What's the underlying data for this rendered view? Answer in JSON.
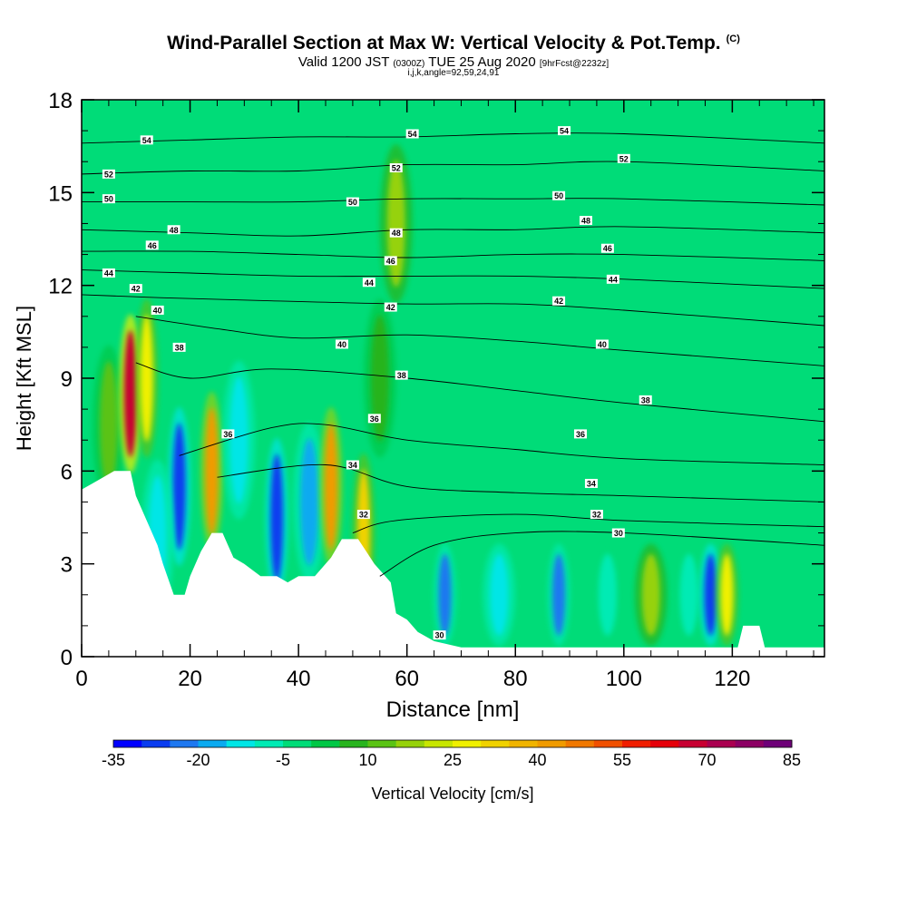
{
  "header": {
    "title": "Wind-Parallel Section at Max W: Vertical Velocity & Pot.Temp.",
    "title_mark": "(C)",
    "valid_prefix": "Valid 1200 JST",
    "valid_zulu": "(0300Z)",
    "valid_date": "TUE 25 Aug 2020",
    "fcst": "[9hrFcst@2232z]",
    "ijk": "i,j,k,angle=92,59,24,91"
  },
  "colors": {
    "ramp": [
      "#0000ff",
      "#0a3cf0",
      "#1e78f0",
      "#0aaaf0",
      "#00e6e6",
      "#00ebb4",
      "#00dc78",
      "#00c846",
      "#28b41e",
      "#5ac314",
      "#96d20a",
      "#c8e600",
      "#f0f000",
      "#f0d200",
      "#f0b400",
      "#f09b00",
      "#f07800",
      "#f05000",
      "#f01e00",
      "#e6000a",
      "#c80032",
      "#aa0050",
      "#8c0064",
      "#6e0078"
    ],
    "background": "#00dc78",
    "terrain": "#ffffff",
    "contour": "#000000"
  },
  "chart_data": {
    "type": "heatmap",
    "xlabel": "Distance [nm]",
    "ylabel": "Height [Kft MSL]",
    "xlim": [
      0,
      137
    ],
    "ylim": [
      0,
      18
    ],
    "x_ticks": [
      0,
      20,
      40,
      60,
      80,
      100,
      120
    ],
    "y_ticks": [
      0,
      3,
      6,
      9,
      12,
      15,
      18
    ],
    "colorbar": {
      "label": "Vertical Velocity [cm/s]",
      "min": -35,
      "max": 85,
      "step": 5,
      "tick_labels": [
        -35,
        -20,
        -5,
        10,
        25,
        40,
        55,
        70,
        85
      ]
    },
    "terrain": [
      [
        0,
        5.4
      ],
      [
        2,
        5.6
      ],
      [
        6,
        6.0
      ],
      [
        9,
        6.0
      ],
      [
        10,
        5.2
      ],
      [
        12,
        4.4
      ],
      [
        14,
        3.6
      ],
      [
        15,
        3.0
      ],
      [
        17,
        2.0
      ],
      [
        19,
        2.0
      ],
      [
        20,
        2.6
      ],
      [
        22,
        3.4
      ],
      [
        24,
        4.0
      ],
      [
        26,
        4.0
      ],
      [
        28,
        3.2
      ],
      [
        30,
        3.0
      ],
      [
        33,
        2.6
      ],
      [
        36,
        2.6
      ],
      [
        38,
        2.4
      ],
      [
        40,
        2.6
      ],
      [
        43,
        2.6
      ],
      [
        46,
        3.2
      ],
      [
        48,
        3.8
      ],
      [
        51,
        3.8
      ],
      [
        54,
        3.0
      ],
      [
        57,
        2.4
      ],
      [
        58,
        1.4
      ],
      [
        60,
        1.2
      ],
      [
        62,
        0.8
      ],
      [
        65,
        0.5
      ],
      [
        70,
        0.3
      ],
      [
        80,
        0.3
      ],
      [
        100,
        0.3
      ],
      [
        115,
        0.3
      ],
      [
        121,
        0.3
      ],
      [
        122,
        1.0
      ],
      [
        125,
        1.0
      ],
      [
        126,
        0.3
      ],
      [
        137,
        0.3
      ]
    ],
    "vertical_velocity_cells": [
      {
        "x": 5,
        "z": 7.5,
        "w": 10
      },
      {
        "x": 9,
        "z": 8.5,
        "w": 65
      },
      {
        "x": 12,
        "z": 9.0,
        "w": 25
      },
      {
        "x": 18,
        "z": 5.5,
        "w": -30
      },
      {
        "x": 14,
        "z": 3.8,
        "w": -15
      },
      {
        "x": 24,
        "z": 6.0,
        "w": 40
      },
      {
        "x": 29,
        "z": 7.0,
        "w": -15
      },
      {
        "x": 36,
        "z": 4.5,
        "w": -30
      },
      {
        "x": 42,
        "z": 5.0,
        "w": -20
      },
      {
        "x": 46,
        "z": 5.5,
        "w": 40
      },
      {
        "x": 52,
        "z": 4.0,
        "w": 30
      },
      {
        "x": 55,
        "z": 9.0,
        "w": 5
      },
      {
        "x": 58,
        "z": 14.0,
        "w": 15
      },
      {
        "x": 67,
        "z": 2.0,
        "w": -25
      },
      {
        "x": 77,
        "z": 2.0,
        "w": -15
      },
      {
        "x": 88,
        "z": 2.0,
        "w": -25
      },
      {
        "x": 97,
        "z": 2.0,
        "w": -10
      },
      {
        "x": 105,
        "z": 2.0,
        "w": 15
      },
      {
        "x": 112,
        "z": 2.0,
        "w": -10
      },
      {
        "x": 116,
        "z": 2.0,
        "w": -30
      },
      {
        "x": 119,
        "z": 2.0,
        "w": 25
      }
    ],
    "theta_contours": [
      {
        "value": 30,
        "points": [
          [
            55,
            2.6
          ],
          [
            65,
            3.6
          ],
          [
            80,
            4.0
          ],
          [
            100,
            4.0
          ],
          [
            137,
            3.6
          ]
        ]
      },
      {
        "value": 32,
        "points": [
          [
            50,
            4.0
          ],
          [
            58,
            4.4
          ],
          [
            80,
            4.6
          ],
          [
            100,
            4.4
          ],
          [
            137,
            4.2
          ]
        ]
      },
      {
        "value": 34,
        "points": [
          [
            25,
            5.8
          ],
          [
            45,
            6.2
          ],
          [
            60,
            5.5
          ],
          [
            80,
            5.3
          ],
          [
            100,
            5.2
          ],
          [
            137,
            5.0
          ]
        ]
      },
      {
        "value": 36,
        "points": [
          [
            18,
            6.5
          ],
          [
            35,
            7.4
          ],
          [
            45,
            7.5
          ],
          [
            60,
            7.0
          ],
          [
            80,
            6.7
          ],
          [
            100,
            6.4
          ],
          [
            137,
            6.2
          ]
        ]
      },
      {
        "value": 38,
        "points": [
          [
            10,
            9.5
          ],
          [
            20,
            9.0
          ],
          [
            35,
            9.3
          ],
          [
            60,
            9.0
          ],
          [
            80,
            8.6
          ],
          [
            100,
            8.2
          ],
          [
            137,
            7.6
          ]
        ]
      },
      {
        "value": 40,
        "points": [
          [
            10,
            11.0
          ],
          [
            25,
            10.6
          ],
          [
            40,
            10.3
          ],
          [
            60,
            10.4
          ],
          [
            80,
            10.2
          ],
          [
            100,
            9.9
          ],
          [
            137,
            9.4
          ]
        ]
      },
      {
        "value": 42,
        "points": [
          [
            0,
            11.7
          ],
          [
            15,
            11.6
          ],
          [
            35,
            11.5
          ],
          [
            60,
            11.4
          ],
          [
            80,
            11.4
          ],
          [
            100,
            11.2
          ],
          [
            137,
            10.7
          ]
        ]
      },
      {
        "value": 44,
        "points": [
          [
            0,
            12.5
          ],
          [
            20,
            12.4
          ],
          [
            40,
            12.3
          ],
          [
            60,
            12.3
          ],
          [
            80,
            12.3
          ],
          [
            100,
            12.2
          ],
          [
            137,
            11.9
          ]
        ]
      },
      {
        "value": 46,
        "points": [
          [
            0,
            13.1
          ],
          [
            20,
            13.1
          ],
          [
            40,
            13.0
          ],
          [
            60,
            12.9
          ],
          [
            80,
            13.0
          ],
          [
            100,
            13.0
          ],
          [
            137,
            12.8
          ]
        ]
      },
      {
        "value": 48,
        "points": [
          [
            0,
            13.8
          ],
          [
            20,
            13.7
          ],
          [
            40,
            13.6
          ],
          [
            60,
            13.8
          ],
          [
            80,
            13.8
          ],
          [
            100,
            13.9
          ],
          [
            137,
            13.7
          ]
        ]
      },
      {
        "value": 50,
        "points": [
          [
            0,
            14.7
          ],
          [
            20,
            14.7
          ],
          [
            40,
            14.7
          ],
          [
            60,
            14.8
          ],
          [
            80,
            14.8
          ],
          [
            100,
            14.8
          ],
          [
            137,
            14.6
          ]
        ]
      },
      {
        "value": 52,
        "points": [
          [
            0,
            15.6
          ],
          [
            20,
            15.7
          ],
          [
            40,
            15.7
          ],
          [
            60,
            15.9
          ],
          [
            80,
            15.9
          ],
          [
            100,
            16.0
          ],
          [
            137,
            15.7
          ]
        ]
      },
      {
        "value": 54,
        "points": [
          [
            0,
            16.6
          ],
          [
            20,
            16.7
          ],
          [
            40,
            16.8
          ],
          [
            60,
            16.8
          ],
          [
            80,
            16.9
          ],
          [
            100,
            16.9
          ],
          [
            137,
            16.6
          ]
        ]
      }
    ],
    "contour_labels": [
      {
        "text": "30",
        "x": 99,
        "z": 4.0
      },
      {
        "text": "30",
        "x": 66,
        "z": 0.7
      },
      {
        "text": "32",
        "x": 95,
        "z": 4.6
      },
      {
        "text": "32",
        "x": 52,
        "z": 4.6
      },
      {
        "text": "34",
        "x": 94,
        "z": 5.6
      },
      {
        "text": "34",
        "x": 50,
        "z": 6.2
      },
      {
        "text": "36",
        "x": 92,
        "z": 7.2
      },
      {
        "text": "36",
        "x": 54,
        "z": 7.7
      },
      {
        "text": "36",
        "x": 27,
        "z": 7.2
      },
      {
        "text": "38",
        "x": 104,
        "z": 8.3
      },
      {
        "text": "38",
        "x": 59,
        "z": 9.1
      },
      {
        "text": "38",
        "x": 18,
        "z": 10.0
      },
      {
        "text": "40",
        "x": 96,
        "z": 10.1
      },
      {
        "text": "40",
        "x": 48,
        "z": 10.1
      },
      {
        "text": "40",
        "x": 14,
        "z": 11.2
      },
      {
        "text": "42",
        "x": 88,
        "z": 11.5
      },
      {
        "text": "42",
        "x": 57,
        "z": 11.3
      },
      {
        "text": "42",
        "x": 10,
        "z": 11.9
      },
      {
        "text": "44",
        "x": 98,
        "z": 12.2
      },
      {
        "text": "44",
        "x": 53,
        "z": 12.1
      },
      {
        "text": "44",
        "x": 5,
        "z": 12.4
      },
      {
        "text": "46",
        "x": 97,
        "z": 13.2
      },
      {
        "text": "46",
        "x": 57,
        "z": 12.8
      },
      {
        "text": "46",
        "x": 13,
        "z": 13.3
      },
      {
        "text": "48",
        "x": 93,
        "z": 14.1
      },
      {
        "text": "48",
        "x": 58,
        "z": 13.7
      },
      {
        "text": "48",
        "x": 17,
        "z": 13.8
      },
      {
        "text": "50",
        "x": 88,
        "z": 14.9
      },
      {
        "text": "50",
        "x": 50,
        "z": 14.7
      },
      {
        "text": "50",
        "x": 5,
        "z": 14.8
      },
      {
        "text": "52",
        "x": 100,
        "z": 16.1
      },
      {
        "text": "52",
        "x": 58,
        "z": 15.8
      },
      {
        "text": "52",
        "x": 5,
        "z": 15.6
      },
      {
        "text": "54",
        "x": 89,
        "z": 17.0
      },
      {
        "text": "54",
        "x": 61,
        "z": 16.9
      },
      {
        "text": "54",
        "x": 12,
        "z": 16.7
      }
    ]
  }
}
